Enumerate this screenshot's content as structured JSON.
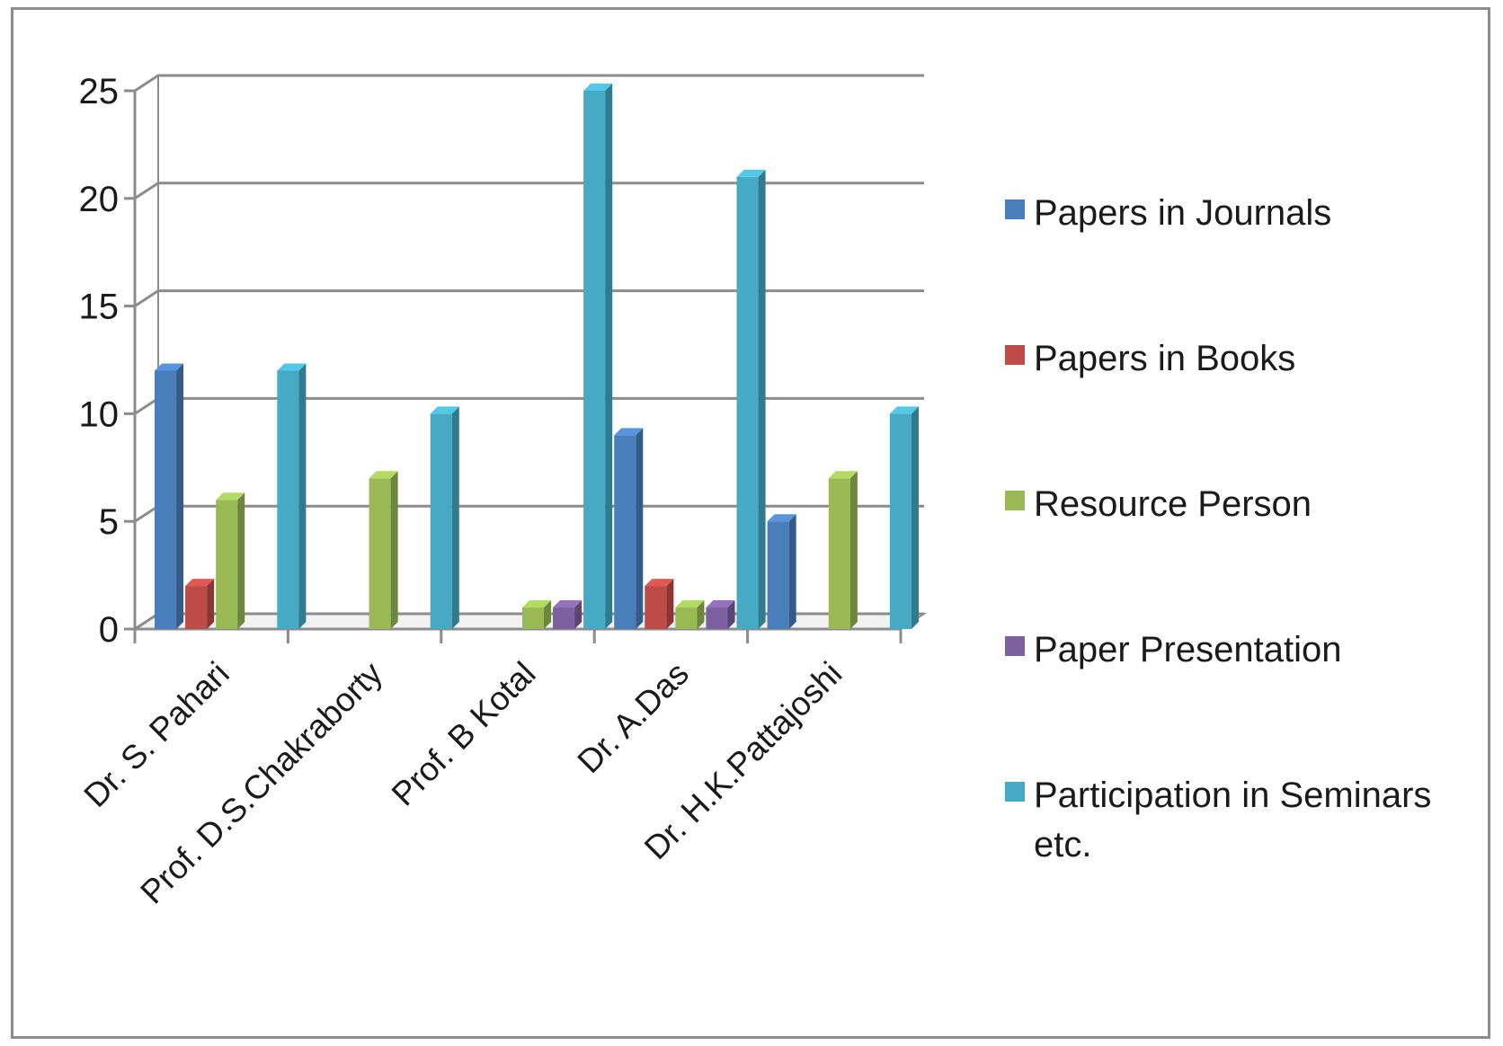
{
  "chart_data": {
    "type": "bar",
    "categories": [
      "Dr. S. Pahari",
      "Prof. D.S.Chakraborty",
      "Prof. B Kotal",
      "Dr. A.Das",
      "Dr. H.K.Pattajoshi"
    ],
    "series": [
      {
        "name": "Papers in Journals",
        "color": "#4a7ebb",
        "values": [
          12,
          0,
          0,
          9,
          5
        ]
      },
      {
        "name": "Papers in Books",
        "color": "#be4b48",
        "values": [
          2,
          0,
          0,
          2,
          0
        ]
      },
      {
        "name": "Resource Person",
        "color": "#98b954",
        "values": [
          6,
          7,
          1,
          1,
          7
        ]
      },
      {
        "name": "Paper Presentation",
        "color": "#7d60a0",
        "values": [
          0,
          0,
          1,
          1,
          0
        ]
      },
      {
        "name": "Participation in Seminars etc.",
        "color": "#46aac5",
        "values": [
          12,
          10,
          25,
          21,
          10
        ]
      }
    ],
    "yticks": [
      0,
      5,
      10,
      15,
      20,
      25
    ],
    "ylim": [
      0,
      25
    ],
    "grid": true,
    "legend_position": "right",
    "style": "3d-clustered-column"
  }
}
